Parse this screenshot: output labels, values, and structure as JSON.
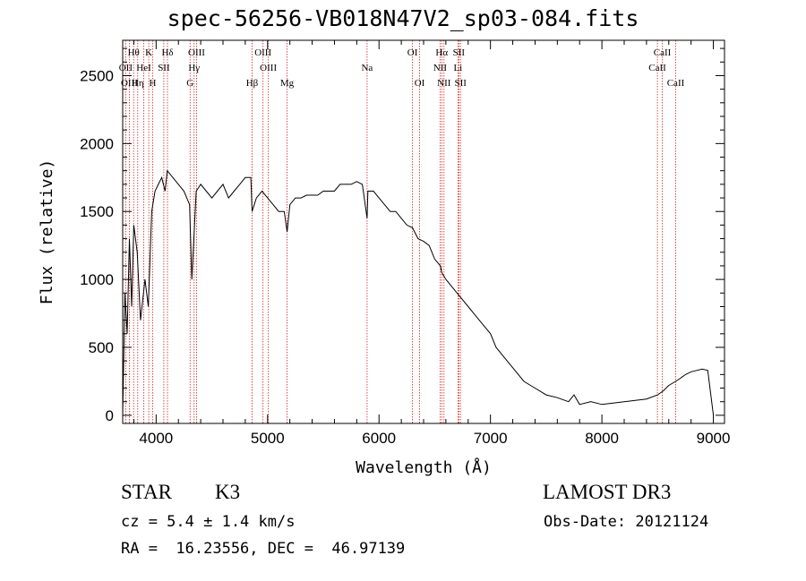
{
  "colors": {
    "line": "#000000",
    "marker": "#cc2222",
    "axes": "#000000"
  },
  "chart_data": {
    "type": "line",
    "title": "spec-56256-VB018N47V2_sp03-084.fits",
    "xlabel": "Wavelength (Å)",
    "ylabel": "Flux (relative)",
    "xlim": [
      3700,
      9100
    ],
    "ylim": [
      -60,
      2760
    ],
    "xticks": [
      4000,
      5000,
      6000,
      7000,
      8000,
      9000
    ],
    "yticks": [
      0,
      500,
      1000,
      1500,
      2000,
      2500
    ],
    "series": [
      {
        "name": "flux",
        "x": [
          3700,
          3720,
          3740,
          3760,
          3780,
          3800,
          3830,
          3860,
          3900,
          3930,
          3960,
          3990,
          4020,
          4050,
          4080,
          4100,
          4150,
          4200,
          4250,
          4300,
          4320,
          4360,
          4400,
          4450,
          4500,
          4550,
          4600,
          4650,
          4700,
          4750,
          4800,
          4850,
          4861,
          4900,
          4950,
          5000,
          5050,
          5100,
          5150,
          5175,
          5200,
          5250,
          5300,
          5350,
          5400,
          5450,
          5500,
          5550,
          5600,
          5650,
          5700,
          5750,
          5800,
          5850,
          5893,
          5900,
          5950,
          6000,
          6050,
          6100,
          6150,
          6200,
          6250,
          6300,
          6350,
          6400,
          6450,
          6500,
          6550,
          6563,
          6600,
          6650,
          6700,
          6750,
          6800,
          6850,
          6900,
          6950,
          7000,
          7050,
          7100,
          7150,
          7200,
          7300,
          7400,
          7500,
          7600,
          7700,
          7750,
          7800,
          7900,
          8000,
          8100,
          8200,
          8300,
          8400,
          8500,
          8550,
          8600,
          8662,
          8700,
          8750,
          8800,
          8850,
          8900,
          8950,
          9000
        ],
        "y": [
          0,
          900,
          600,
          1300,
          800,
          1400,
          1200,
          700,
          1000,
          800,
          1500,
          1650,
          1700,
          1750,
          1650,
          1800,
          1750,
          1700,
          1650,
          1550,
          1000,
          1650,
          1700,
          1650,
          1600,
          1650,
          1700,
          1600,
          1650,
          1700,
          1750,
          1750,
          1500,
          1600,
          1650,
          1600,
          1550,
          1500,
          1500,
          1350,
          1550,
          1600,
          1600,
          1620,
          1620,
          1620,
          1650,
          1650,
          1650,
          1700,
          1700,
          1700,
          1720,
          1700,
          1450,
          1650,
          1650,
          1600,
          1550,
          1500,
          1500,
          1450,
          1400,
          1380,
          1300,
          1280,
          1250,
          1150,
          1100,
          1050,
          1000,
          950,
          900,
          850,
          800,
          750,
          700,
          650,
          600,
          500,
          450,
          400,
          350,
          250,
          200,
          150,
          130,
          100,
          150,
          80,
          100,
          80,
          90,
          100,
          110,
          120,
          150,
          180,
          220,
          250,
          270,
          300,
          320,
          330,
          340,
          330,
          0
        ]
      }
    ],
    "lines": [
      {
        "label": "Hθ",
        "x": 3798,
        "row": 0
      },
      {
        "label": "OII",
        "x": 3727,
        "row": 1
      },
      {
        "label": "OIII",
        "x": 3760,
        "row": 2
      },
      {
        "label": "HeI",
        "x": 3889,
        "row": 1
      },
      {
        "label": "K",
        "x": 3934,
        "row": 0
      },
      {
        "label": "Hη",
        "x": 3835,
        "row": 2
      },
      {
        "label": "SII",
        "x": 4069,
        "row": 1
      },
      {
        "label": "Hδ",
        "x": 4102,
        "row": 0
      },
      {
        "label": "H",
        "x": 3969,
        "row": 2
      },
      {
        "label": "OIII",
        "x": 4363,
        "row": 0
      },
      {
        "label": "Hγ",
        "x": 4341,
        "row": 1
      },
      {
        "label": "G",
        "x": 4305,
        "row": 2
      },
      {
        "label": "Hβ",
        "x": 4861,
        "row": 2
      },
      {
        "label": "OIII",
        "x": 4959,
        "row": 0
      },
      {
        "label": "OIII",
        "x": 5007,
        "row": 1
      },
      {
        "label": "Mg",
        "x": 5175,
        "row": 2
      },
      {
        "label": "Na",
        "x": 5893,
        "row": 1
      },
      {
        "label": "OI",
        "x": 6300,
        "row": 0
      },
      {
        "label": "OI",
        "x": 6364,
        "row": 2
      },
      {
        "label": "Hα",
        "x": 6563,
        "row": 0
      },
      {
        "label": "NII",
        "x": 6548,
        "row": 1
      },
      {
        "label": "NII",
        "x": 6583,
        "row": 2
      },
      {
        "label": "SII",
        "x": 6716,
        "row": 0
      },
      {
        "label": "Li",
        "x": 6708,
        "row": 1
      },
      {
        "label": "SII",
        "x": 6731,
        "row": 2
      },
      {
        "label": "CaII",
        "x": 8542,
        "row": 0
      },
      {
        "label": "CaII",
        "x": 8498,
        "row": 1
      },
      {
        "label": "CaII",
        "x": 8662,
        "row": 2
      }
    ]
  },
  "info": {
    "class_label": "STAR",
    "subclass": "K3",
    "survey": "LAMOST DR3",
    "cz": "cz = 5.4 ± 1.4 km/s",
    "obs_date": "Obs-Date: 20121124",
    "coords": "RA =  16.23556, DEC =  46.97139"
  }
}
